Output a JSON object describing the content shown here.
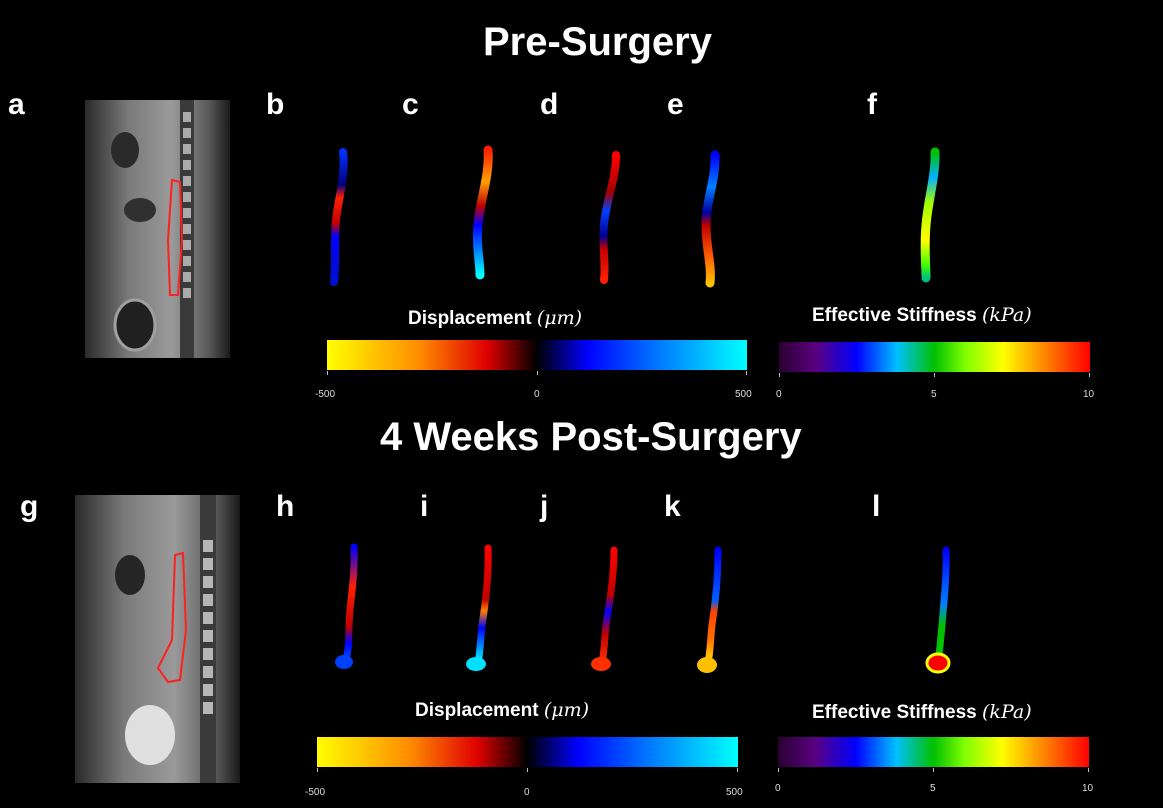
{
  "figure": {
    "top": {
      "title": "Pre-Surgery",
      "panel_letters": [
        "a",
        "b",
        "c",
        "d",
        "e",
        "f"
      ],
      "displacement_colorbar": {
        "label": "Displacement",
        "unit": "(μm)",
        "ticks": [
          "-500",
          "0",
          "500"
        ],
        "range": [
          -500,
          500
        ],
        "colors": [
          "#ffff00",
          "#ff7f00",
          "#e00000",
          "#000000",
          "#0000ff",
          "#0080ff",
          "#00ffff"
        ]
      },
      "stiffness_colorbar": {
        "label": "Effective Stiffness",
        "unit": "(kPa)",
        "ticks": [
          "0",
          "5",
          "10"
        ],
        "range": [
          0,
          10
        ],
        "colors": [
          "#30003a",
          "#5a0080",
          "#0000ff",
          "#00c0ff",
          "#00c000",
          "#80ff00",
          "#ffff00",
          "#ff8000",
          "#ff0000"
        ]
      }
    },
    "bottom": {
      "title": "4 Weeks Post-Surgery",
      "panel_letters": [
        "g",
        "h",
        "i",
        "j",
        "k",
        "l"
      ],
      "displacement_colorbar": {
        "label": "Displacement",
        "unit": "(μm)",
        "ticks": [
          "-500",
          "0",
          "500"
        ]
      },
      "stiffness_colorbar": {
        "label": "Effective Stiffness",
        "unit": "(kPa)",
        "ticks": [
          "0",
          "5",
          "10"
        ]
      }
    },
    "colors": {
      "background": "#000000",
      "outline": "#ff2020"
    }
  }
}
